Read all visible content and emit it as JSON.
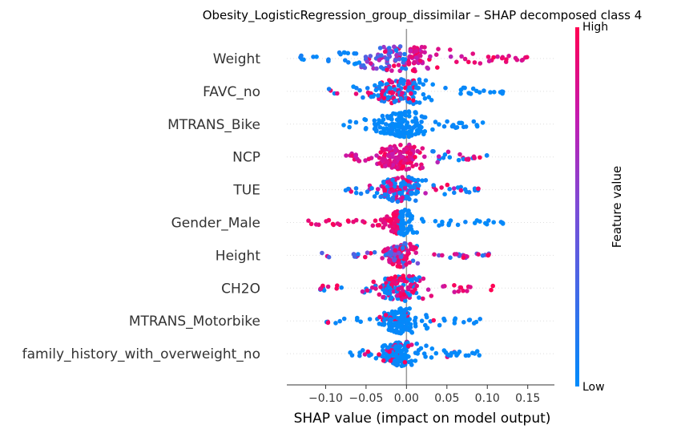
{
  "chart_data": {
    "type": "scatter",
    "subtype": "shap-beeswarm",
    "title": "Obesity_LogisticRegression_group_dissimilar – SHAP decomposed class 4",
    "xlabel": "SHAP value (impact on model output)",
    "xlim": [
      -0.148,
      0.183
    ],
    "xticks": [
      -0.1,
      -0.05,
      0.0,
      0.05,
      0.1,
      0.15
    ],
    "xtick_labels": [
      "−0.10",
      "−0.05",
      "0.00",
      "0.05",
      "0.10",
      "0.15"
    ],
    "colorbar": {
      "label": "Feature value",
      "high": "High",
      "low": "Low",
      "high_color": "#ff0052",
      "low_color": "#008bfb"
    },
    "features": [
      {
        "name": "Weight",
        "min": -0.135,
        "max": 0.175,
        "core": 0.09
      },
      {
        "name": "FAVC_no",
        "min": -0.1,
        "max": 0.135,
        "core": 0.06
      },
      {
        "name": "MTRANS_Bike",
        "min": -0.078,
        "max": 0.095,
        "core": 0.05
      },
      {
        "name": "NCP",
        "min": -0.075,
        "max": 0.1,
        "core": 0.05
      },
      {
        "name": "TUE",
        "min": -0.077,
        "max": 0.095,
        "core": 0.05
      },
      {
        "name": "Gender_Male",
        "min": -0.125,
        "max": 0.122,
        "core": 0.03
      },
      {
        "name": "Height",
        "min": -0.108,
        "max": 0.105,
        "core": 0.03
      },
      {
        "name": "CH2O",
        "min": -0.11,
        "max": 0.11,
        "core": 0.05
      },
      {
        "name": "MTRANS_Motorbike",
        "min": -0.1,
        "max": 0.105,
        "core": 0.04
      },
      {
        "name": "family_history_with_overweight_no",
        "min": -0.092,
        "max": 0.092,
        "core": 0.04
      }
    ]
  }
}
